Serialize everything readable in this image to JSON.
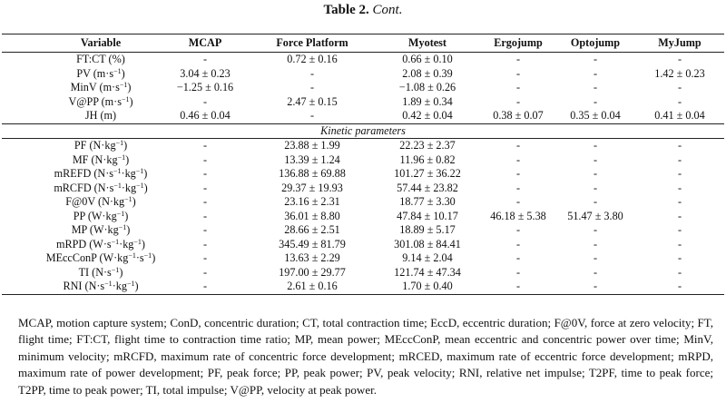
{
  "caption": {
    "label": "Table 2.",
    "cont": "Cont."
  },
  "headers": [
    "Variable",
    "MCAP",
    "Force Platform",
    "Myotest",
    "Ergojump",
    "Optojump",
    "MyJump"
  ],
  "section1": [
    [
      "FT:CT (%)",
      "-",
      "0.72 ± 0.16",
      "0.66 ± 0.10",
      "-",
      "-",
      "-"
    ],
    [
      "PV (m·s^-1)",
      "3.04 ± 0.23",
      "-",
      "2.08 ± 0.39",
      "-",
      "-",
      "1.42 ± 0.23"
    ],
    [
      "MinV (m·s^-1)",
      "−1.25 ± 0.16",
      "-",
      "−1.08 ± 0.26",
      "-",
      "-",
      "-"
    ],
    [
      "V@PP (m·s^-1)",
      "-",
      "2.47 ± 0.15",
      "1.89 ± 0.34",
      "-",
      "-",
      "-"
    ],
    [
      "JH (m)",
      "0.46 ± 0.04",
      "-",
      "0.42 ± 0.04",
      "0.38 ± 0.07",
      "0.35 ± 0.04",
      "0.41 ± 0.04"
    ]
  ],
  "subheader": "Kinetic parameters",
  "section2": [
    [
      "PF (N·kg^-1)",
      "-",
      "23.88 ± 1.99",
      "22.23 ± 2.37",
      "-",
      "-",
      "-"
    ],
    [
      "MF (N·kg^-1)",
      "-",
      "13.39 ± 1.24",
      "11.96 ± 0.82",
      "-",
      "-",
      "-"
    ],
    [
      "mREFD (N·s^-1·kg^-1)",
      "-",
      "136.88 ± 69.88",
      "101.27 ± 36.22",
      "-",
      "-",
      "-"
    ],
    [
      "mRCFD (N·s^-1·kg^-1)",
      "-",
      "29.37 ± 19.93",
      "57.44 ± 23.82",
      "-",
      "-",
      "-"
    ],
    [
      "F@0V (N·kg^-1)",
      "-",
      "23.16 ± 2.31",
      "18.77 ± 3.30",
      "-",
      "-",
      "-"
    ],
    [
      "PP (W·kg^-1)",
      "-",
      "36.01 ± 8.80",
      "47.84 ± 10.17",
      "46.18 ± 5.38",
      "51.47 ± 3.80",
      "-"
    ],
    [
      "MP (W·kg^-1)",
      "-",
      "28.66 ± 2.51",
      "18.89 ± 5.17",
      "-",
      "-",
      "-"
    ],
    [
      "mRPD (W·s^-1·kg^-1)",
      "-",
      "345.49 ± 81.79",
      "301.08 ± 84.41",
      "-",
      "-",
      "-"
    ],
    [
      "MEccConP (W·kg^-1·s^-1)",
      "-",
      "13.63 ± 2.29",
      "9.14 ± 2.04",
      "-",
      "-",
      "-"
    ],
    [
      "TI (N·s^-1)",
      "-",
      "197.00 ± 29.77",
      "121.74 ± 47.34",
      "-",
      "-",
      "-"
    ],
    [
      "RNI (N·s^-1·kg^-1)",
      "-",
      "2.61 ± 0.16",
      "1.70 ± 0.40",
      "-",
      "-",
      "-"
    ]
  ],
  "footnote": "MCAP, motion capture system; ConD, concentric duration; CT, total contraction time; EccD, eccentric duration; F@0V, force at zero velocity; FT, flight time; FT:CT, flight time to contraction time ratio; MP, mean power; MEccConP, mean eccentric and concentric power over time; MinV, minimum velocity; mRCFD, maximum rate of concentric force development; mRCED, maximum rate of eccentric force development; mRPD, maximum rate of power development; PF, peak force; PP, peak power; PV, peak velocity; RNI, relative net impulse; T2PF, time to peak force; T2PP, time to peak power; TI, total impulse; V@PP, velocity at peak power."
}
